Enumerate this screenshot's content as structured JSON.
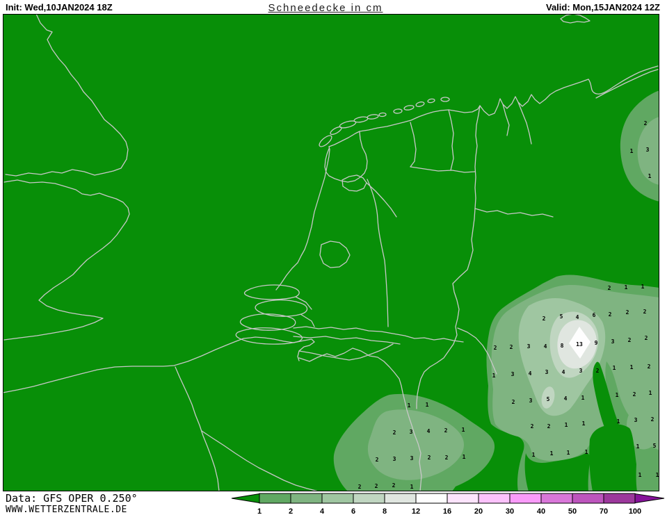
{
  "header": {
    "init_label": "Init: Wed,10JAN2024 18Z",
    "title": "Schneedecke in cm",
    "valid_label": "Valid: Mon,15JAN2024 12Z"
  },
  "footer": {
    "data_source": "Data: GFS OPER 0.250°",
    "website": "WWW.WETTERZENTRALE.DE"
  },
  "legend": {
    "tick_labels": [
      "1",
      "2",
      "4",
      "6",
      "8",
      "12",
      "16",
      "20",
      "30",
      "40",
      "50",
      "70",
      "100"
    ],
    "segment_colors": [
      "#60a862",
      "#7fb481",
      "#9fc6a1",
      "#c0d6c1",
      "#e0e6e0",
      "#fefefe",
      "#fde4fd",
      "#fcc2fc",
      "#fa9bfa",
      "#d977d9",
      "#bd55bd",
      "#9c389c"
    ],
    "underflow_color": "#088f08",
    "overflow_color": "#86129a"
  },
  "map": {
    "background_color": "#088f08",
    "coastline_color": "#c8c8c8",
    "frame_color": "#000000",
    "unit": "cm",
    "values": [
      [
        928,
        177,
        "2"
      ],
      [
        908,
        217,
        "1"
      ],
      [
        931,
        215,
        "3"
      ],
      [
        934,
        253,
        "1"
      ],
      [
        876,
        414,
        "2"
      ],
      [
        900,
        413,
        "1"
      ],
      [
        924,
        412,
        "1"
      ],
      [
        782,
        458,
        "2"
      ],
      [
        807,
        455,
        "5"
      ],
      [
        830,
        456,
        "4"
      ],
      [
        854,
        453,
        "6"
      ],
      [
        877,
        452,
        "2"
      ],
      [
        902,
        449,
        "2"
      ],
      [
        927,
        448,
        "2"
      ],
      [
        712,
        500,
        "2"
      ],
      [
        735,
        499,
        "2"
      ],
      [
        760,
        498,
        "3"
      ],
      [
        784,
        498,
        "4"
      ],
      [
        808,
        497,
        "8"
      ],
      [
        833,
        495,
        "13"
      ],
      [
        857,
        493,
        "9"
      ],
      [
        881,
        491,
        "3"
      ],
      [
        905,
        489,
        "2"
      ],
      [
        929,
        486,
        "2"
      ],
      [
        710,
        540,
        "1"
      ],
      [
        737,
        538,
        "3"
      ],
      [
        762,
        537,
        "4"
      ],
      [
        786,
        535,
        "3"
      ],
      [
        810,
        535,
        "4"
      ],
      [
        835,
        533,
        "3"
      ],
      [
        859,
        533,
        "2"
      ],
      [
        883,
        529,
        "1"
      ],
      [
        908,
        528,
        "1"
      ],
      [
        933,
        527,
        "2"
      ],
      [
        738,
        578,
        "2"
      ],
      [
        763,
        576,
        "3"
      ],
      [
        788,
        574,
        "5"
      ],
      [
        813,
        573,
        "4"
      ],
      [
        838,
        572,
        "1"
      ],
      [
        887,
        568,
        "1"
      ],
      [
        912,
        567,
        "2"
      ],
      [
        935,
        565,
        "1"
      ],
      [
        765,
        613,
        "2"
      ],
      [
        789,
        613,
        "2"
      ],
      [
        814,
        611,
        "1"
      ],
      [
        839,
        609,
        "1"
      ],
      [
        889,
        606,
        "1"
      ],
      [
        914,
        604,
        "3"
      ],
      [
        938,
        603,
        "2"
      ],
      [
        767,
        654,
        "1"
      ],
      [
        793,
        652,
        "1"
      ],
      [
        817,
        651,
        "1"
      ],
      [
        843,
        650,
        "1"
      ],
      [
        917,
        642,
        "1"
      ],
      [
        941,
        641,
        "5"
      ],
      [
        920,
        683,
        "1"
      ],
      [
        945,
        683,
        "1"
      ],
      [
        588,
        583,
        "1"
      ],
      [
        614,
        582,
        "1"
      ],
      [
        567,
        622,
        "2"
      ],
      [
        591,
        621,
        "3"
      ],
      [
        616,
        620,
        "4"
      ],
      [
        641,
        619,
        "2"
      ],
      [
        666,
        618,
        "1"
      ],
      [
        542,
        661,
        "2"
      ],
      [
        567,
        660,
        "3"
      ],
      [
        592,
        659,
        "3"
      ],
      [
        617,
        658,
        "2"
      ],
      [
        642,
        658,
        "2"
      ],
      [
        667,
        657,
        "1"
      ],
      [
        517,
        700,
        "2"
      ],
      [
        541,
        699,
        "2"
      ],
      [
        566,
        698,
        "2"
      ],
      [
        592,
        700,
        "1"
      ]
    ]
  }
}
